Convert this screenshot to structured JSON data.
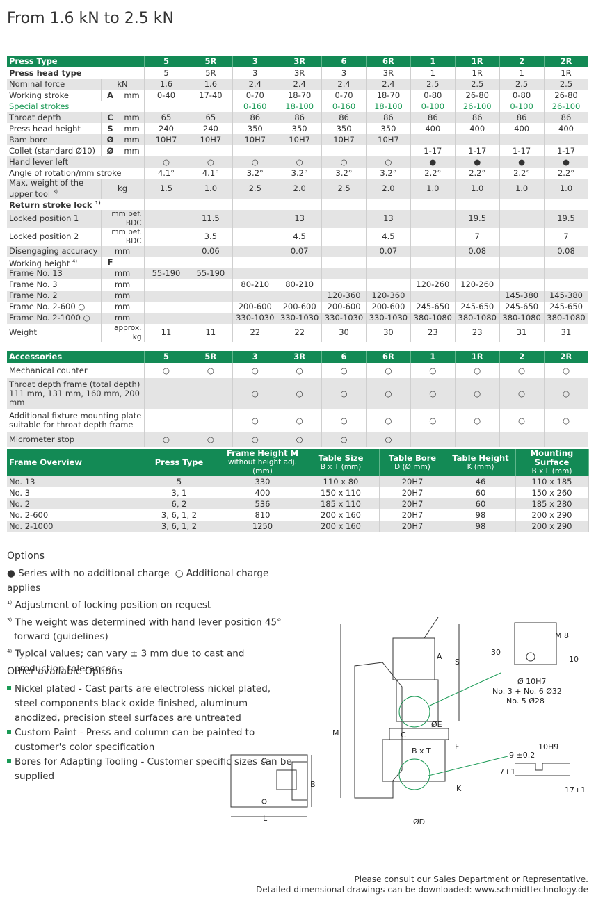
{
  "title": "From 1.6 kN to 2.5 kN",
  "spec_table": {
    "header": [
      "Press Type",
      "5",
      "5R",
      "3",
      "3R",
      "6",
      "6R",
      "1",
      "1R",
      "2",
      "2R"
    ],
    "rows": [
      {
        "label": "Press head type",
        "cells": [
          "5",
          "5R",
          "3",
          "3R",
          "3",
          "3R",
          "1",
          "1R",
          "1",
          "1R"
        ]
      },
      {
        "label": "Nominal force",
        "unit": "kN",
        "cells": [
          "1.6",
          "1.6",
          "2.4",
          "2.4",
          "2.4",
          "2.4",
          "2.5",
          "2.5",
          "2.5",
          "2.5"
        ]
      },
      {
        "label": "Working stroke",
        "symbol": "A",
        "unit": "mm",
        "cells": [
          "0-40",
          "17-40",
          "0-70",
          "18-70",
          "0-70",
          "18-70",
          "0-80",
          "26-80",
          "0-80",
          "26-80"
        ]
      },
      {
        "label": "Special strokes",
        "cells": [
          null,
          null,
          "0-160",
          "18-100",
          "0-160",
          "18-100",
          "0-100",
          "26-100",
          "0-100",
          "26-100"
        ]
      },
      {
        "label": "Throat depth",
        "symbol": "C",
        "unit": "mm",
        "cells": [
          "65",
          "65",
          "86",
          "86",
          "86",
          "86",
          "86",
          "86",
          "86",
          "86"
        ]
      },
      {
        "label": "Press head height",
        "symbol": "S",
        "unit": "mm",
        "cells": [
          "240",
          "240",
          "350",
          "350",
          "350",
          "350",
          "400",
          "400",
          "400",
          "400"
        ]
      },
      {
        "label": "Ram bore",
        "symbol": "Ø",
        "unit": "mm",
        "cells": [
          "10H7",
          "10H7",
          "10H7",
          "10H7",
          "10H7",
          "10H7",
          null,
          null,
          null,
          null
        ]
      },
      {
        "label": "Collet (standard Ø10)",
        "symbol": "Ø",
        "unit": "mm",
        "cells": [
          null,
          null,
          null,
          null,
          null,
          null,
          "1-17",
          "1-17",
          "1-17",
          "1-17"
        ]
      },
      {
        "label": "Hand lever left",
        "cells": [
          "○",
          "○",
          "○",
          "○",
          "○",
          "○",
          "●",
          "●",
          "●",
          "●"
        ]
      },
      {
        "label": "Angle of rotation/mm stroke",
        "cells": [
          "4.1°",
          "4.1°",
          "3.2°",
          "3.2°",
          "3.2°",
          "3.2°",
          "2.2°",
          "2.2°",
          "2.2°",
          "2.2°"
        ]
      },
      {
        "label": "Max. weight of the upper tool",
        "note": "3)",
        "unit": "kg",
        "cells": [
          "1.5",
          "1.0",
          "2.5",
          "2.0",
          "2.5",
          "2.0",
          "1.0",
          "1.0",
          "1.0",
          "1.0"
        ]
      },
      {
        "label": "Return stroke lock",
        "note": "1)",
        "cells": [
          null,
          null,
          null,
          null,
          null,
          null,
          null,
          null,
          null,
          null
        ]
      },
      {
        "label": "Locked position 1",
        "unit": "mm bef. BDC",
        "cells": [
          null,
          "11.5",
          null,
          "13",
          null,
          "13",
          null,
          "19.5",
          null,
          "19.5"
        ]
      },
      {
        "label": "Locked position 2",
        "unit": "mm bef. BDC",
        "cells": [
          null,
          "3.5",
          null,
          "4.5",
          null,
          "4.5",
          null,
          "7",
          null,
          "7"
        ]
      },
      {
        "label": "Disengaging accuracy",
        "unit": "mm",
        "cells": [
          null,
          "0.06",
          null,
          "0.07",
          null,
          "0.07",
          null,
          "0.08",
          null,
          "0.08"
        ]
      },
      {
        "label": "Working height",
        "note": "4)",
        "symbol": "F",
        "cells": [
          null,
          null,
          null,
          null,
          null,
          null,
          null,
          null,
          null,
          null
        ]
      },
      {
        "label": "Frame No. 13",
        "unit": "mm",
        "cells": [
          "55-190",
          "55-190",
          null,
          null,
          null,
          null,
          null,
          null,
          null,
          null
        ]
      },
      {
        "label": "Frame No. 3",
        "unit": "mm",
        "cells": [
          null,
          null,
          "80-210",
          "80-210",
          null,
          null,
          "120-260",
          "120-260",
          null,
          null
        ]
      },
      {
        "label": "Frame No. 2",
        "unit": "mm",
        "cells": [
          null,
          null,
          null,
          null,
          "120-360",
          "120-360",
          null,
          null,
          "145-380",
          "145-380"
        ]
      },
      {
        "label": "Frame No. 2-600 ○",
        "unit": "mm",
        "cells": [
          null,
          null,
          "200-600",
          "200-600",
          "200-600",
          "200-600",
          "245-650",
          "245-650",
          "245-650",
          "245-650"
        ]
      },
      {
        "label": "Frame No. 2-1000 ○",
        "unit": "mm",
        "cells": [
          null,
          null,
          "330-1030",
          "330-1030",
          "330-1030",
          "330-1030",
          "380-1080",
          "380-1080",
          "380-1080",
          "380-1080"
        ]
      },
      {
        "label": "Weight",
        "unit": "approx. kg",
        "cells": [
          "11",
          "11",
          "22",
          "22",
          "30",
          "30",
          "23",
          "23",
          "31",
          "31"
        ]
      }
    ]
  },
  "accessories_table": {
    "header": [
      "Accessories",
      "5",
      "5R",
      "3",
      "3R",
      "6",
      "6R",
      "1",
      "1R",
      "2",
      "2R"
    ],
    "rows": [
      {
        "label": [
          "Mechanical counter"
        ],
        "cells": [
          "○",
          "○",
          "○",
          "○",
          "○",
          "○",
          "○",
          "○",
          "○",
          "○"
        ]
      },
      {
        "label": [
          "Throat depth frame (total depth)",
          "111 mm, 131 mm, 160 mm, 200 mm"
        ],
        "cells": [
          null,
          null,
          "○",
          "○",
          "○",
          "○",
          "○",
          "○",
          "○",
          "○"
        ]
      },
      {
        "label": [
          "Additional fixture mounting plate",
          "suitable for throat depth frame"
        ],
        "cells": [
          null,
          null,
          "○",
          "○",
          "○",
          "○",
          "○",
          "○",
          "○",
          "○"
        ]
      },
      {
        "label": [
          "Micrometer stop"
        ],
        "cells": [
          "○",
          "○",
          "○",
          "○",
          "○",
          "○",
          null,
          null,
          null,
          null
        ]
      }
    ]
  },
  "frame_overview": {
    "header": [
      {
        "title": "Frame Overview"
      },
      {
        "title": "Press Type"
      },
      {
        "title": "Frame Height M",
        "sub": "without height adj. (mm)"
      },
      {
        "title": "Table Size",
        "sub": "B x T (mm)"
      },
      {
        "title": "Table Bore",
        "sub": "D (Ø mm)"
      },
      {
        "title": "Table Height",
        "sub": "K (mm)"
      },
      {
        "title": "Mounting Surface",
        "sub": "B x L (mm)"
      }
    ],
    "rows": [
      [
        "No. 13",
        "5",
        "330",
        "110 x 80",
        "20H7",
        "46",
        "110 x 185"
      ],
      [
        "No. 3",
        "3, 1",
        "400",
        "150 x 110",
        "20H7",
        "60",
        "150 x 260"
      ],
      [
        "No. 2",
        "6, 2",
        "536",
        "185 x 110",
        "20H7",
        "60",
        "185 x 280"
      ],
      [
        "No. 2-600",
        "3, 6, 1, 2",
        "810",
        "200 x 160",
        "20H7",
        "98",
        "200 x 290"
      ],
      [
        "No. 2-1000",
        "3, 6, 1, 2",
        "1250",
        "200 x 160",
        "20H7",
        "98",
        "200 x 290"
      ]
    ]
  },
  "options": {
    "heading": "Options",
    "legend": [
      "● Series with no additional charge",
      "○ Additional charge applies"
    ],
    "notes": [
      {
        "mark": "1)",
        "text": "Adjustment of locking position on request"
      },
      {
        "mark": "3)",
        "text": "The weight was determined with hand lever position 45° forward (guidelines)"
      },
      {
        "mark": "4)",
        "text": "Typical values; can vary ± 3 mm due to cast and production tolerances"
      }
    ]
  },
  "other_options": {
    "heading": "Other available Options",
    "items": [
      "Nickel plated - Cast parts are electroless nickel plated, steel components black oxide finished, aluminum anodized, precision steel surfaces are untreated",
      "Custom Paint - Press and column can be painted to customer's color specification",
      "Bores for Adapting Tooling - Customer specific sizes can be supplied"
    ]
  },
  "drawing": {
    "labels": {
      "b": "B",
      "l": "L",
      "a": "A",
      "s": "S",
      "c": "C",
      "e": "ØE",
      "m": "M",
      "f": "F",
      "bt": "B x T",
      "k": "K",
      "d": "ØD",
      "h30": "30",
      "m8": "M 8",
      "h10": "10",
      "bore": "Ø 10H7",
      "bore32": "No. 3 + No. 6 Ø32",
      "bore28": "No. 5 Ø28",
      "t9": "9 ±0.2",
      "slot": "10H9",
      "t7": "7+1",
      "t17": "17+1"
    }
  },
  "footer": [
    "Please consult our Sales Department or Representative.",
    "Detailed dimensional drawings can be downloaded: www.schmidttechnology.de"
  ]
}
